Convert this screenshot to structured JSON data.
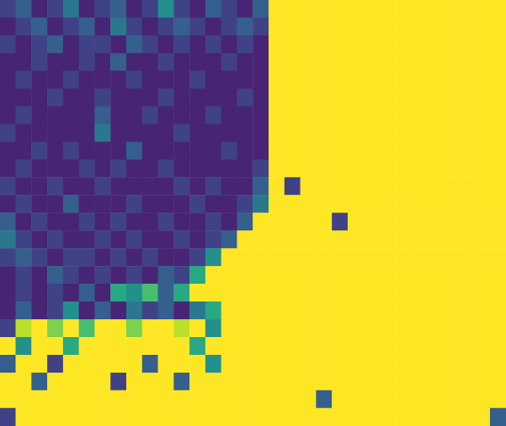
{
  "chart_data": {
    "type": "heatmap",
    "tick_labels": false,
    "zlim": [
      0,
      1
    ],
    "z": [
      [
        0.2,
        0.3,
        0.1,
        0.2,
        0.4,
        0.1,
        0.2,
        0.3,
        0.1,
        0.2,
        0.5,
        0.2,
        0.1,
        0.3,
        0.2,
        0.1,
        0.3,
        1,
        1,
        1,
        1,
        1,
        1,
        1,
        1,
        1,
        1,
        1,
        1,
        1,
        1,
        1
      ],
      [
        0.1,
        0.2,
        0.3,
        0.1,
        0.2,
        0.3,
        0.1,
        0.4,
        0.2,
        0.1,
        0.2,
        0.3,
        0.2,
        0.1,
        0.2,
        0.3,
        0.2,
        1,
        1,
        1,
        1,
        1,
        1,
        1,
        1,
        1,
        1,
        1,
        1,
        1,
        1,
        1
      ],
      [
        0.2,
        0.1,
        0.2,
        0.3,
        0.1,
        0.2,
        0.2,
        0.1,
        0.3,
        0.2,
        0.1,
        0.2,
        0.1,
        0.2,
        0.1,
        0.2,
        0.1,
        1,
        1,
        1,
        1,
        1,
        1,
        1,
        1,
        1,
        1,
        1,
        1,
        1,
        1,
        1
      ],
      [
        0.1,
        0.1,
        0.2,
        0.1,
        0.1,
        0.2,
        0.1,
        0.3,
        0.1,
        0.1,
        0.2,
        0.1,
        0.1,
        0.1,
        0.2,
        0.1,
        0.1,
        1,
        1,
        1,
        1,
        1,
        1,
        1,
        1,
        1,
        1,
        1,
        1,
        1,
        1,
        1
      ],
      [
        0.1,
        0.2,
        0.1,
        0.1,
        0.2,
        0.1,
        0.1,
        0.1,
        0.2,
        0.1,
        0.1,
        0.1,
        0.2,
        0.1,
        0.1,
        0.1,
        0.1,
        1,
        1,
        1,
        1,
        1,
        1,
        1,
        1,
        1,
        1,
        1,
        1,
        1,
        1,
        1
      ],
      [
        0.1,
        0.1,
        0.1,
        0.2,
        0.1,
        0.1,
        0.2,
        0.1,
        0.1,
        0.1,
        0.2,
        0.1,
        0.1,
        0.1,
        0.1,
        0.2,
        0.1,
        1,
        1,
        1,
        1,
        1,
        1,
        1,
        1,
        1,
        1,
        1,
        1,
        1,
        1,
        1
      ],
      [
        0.1,
        0.2,
        0.1,
        0.1,
        0.1,
        0.1,
        0.3,
        0.1,
        0.1,
        0.2,
        0.1,
        0.1,
        0.1,
        0.2,
        0.1,
        0.1,
        0.1,
        1,
        1,
        1,
        1,
        1,
        1,
        1,
        1,
        1,
        1,
        1,
        1,
        1,
        1,
        1
      ],
      [
        0.2,
        0.1,
        0.1,
        0.1,
        0.1,
        0.1,
        0.4,
        0.1,
        0.1,
        0.1,
        0.1,
        0.2,
        0.1,
        0.1,
        0.1,
        0.1,
        0.1,
        1,
        1,
        1,
        1,
        1,
        1,
        1,
        1,
        1,
        1,
        1,
        1,
        1,
        1,
        1
      ],
      [
        0.1,
        0.1,
        0.2,
        0.1,
        0.2,
        0.1,
        0.1,
        0.1,
        0.3,
        0.1,
        0.1,
        0.1,
        0.1,
        0.1,
        0.2,
        0.1,
        0.1,
        1,
        1,
        1,
        1,
        1,
        1,
        1,
        1,
        1,
        1,
        1,
        1,
        1,
        1,
        1
      ],
      [
        0.1,
        0.2,
        0.1,
        0.1,
        0.1,
        0.2,
        0.1,
        0.2,
        0.1,
        0.1,
        0.2,
        0.1,
        0.1,
        0.1,
        0.1,
        0.1,
        0.2,
        1,
        1,
        1,
        1,
        1,
        1,
        1,
        1,
        1,
        1,
        1,
        1,
        1,
        1,
        1
      ],
      [
        0.2,
        0.1,
        0.1,
        0.2,
        0.1,
        0.1,
        0.2,
        0.1,
        0.1,
        0.1,
        0.1,
        0.2,
        0.1,
        0.2,
        0.1,
        0.1,
        0.3,
        1,
        0.2,
        1,
        1,
        1,
        1,
        1,
        1,
        1,
        1,
        1,
        1,
        1,
        1,
        1
      ],
      [
        0.1,
        0.2,
        0.1,
        0.1,
        0.3,
        0.1,
        0.1,
        0.1,
        0.2,
        0.1,
        0.1,
        0.1,
        0.2,
        0.1,
        0.1,
        0.2,
        0.4,
        1,
        1,
        1,
        1,
        1,
        1,
        1,
        1,
        1,
        1,
        1,
        1,
        1,
        1,
        1
      ],
      [
        0.3,
        0.1,
        0.2,
        0.1,
        0.1,
        0.2,
        0.1,
        0.2,
        0.1,
        0.1,
        0.2,
        0.1,
        0.1,
        0.2,
        0.1,
        0.3,
        1,
        1,
        1,
        1,
        1,
        0.2,
        1,
        1,
        1,
        1,
        1,
        1,
        1,
        1,
        1,
        1
      ],
      [
        0.4,
        0.2,
        0.1,
        0.2,
        0.1,
        0.1,
        0.2,
        0.1,
        0.2,
        0.1,
        0.1,
        0.2,
        0.1,
        0.2,
        0.3,
        1,
        1,
        1,
        1,
        1,
        1,
        1,
        1,
        1,
        1,
        1,
        1,
        1,
        1,
        1,
        1,
        1
      ],
      [
        0.2,
        0.3,
        0.2,
        0.1,
        0.2,
        0.2,
        0.1,
        0.2,
        0.1,
        0.2,
        0.1,
        0.1,
        0.2,
        0.5,
        1,
        1,
        1,
        1,
        1,
        1,
        1,
        1,
        1,
        1,
        1,
        1,
        1,
        1,
        1,
        1,
        1,
        1
      ],
      [
        0.1,
        0.2,
        0.1,
        0.3,
        0.2,
        0.1,
        0.2,
        0.1,
        0.2,
        0.1,
        0.3,
        0.2,
        0.6,
        1,
        1,
        1,
        1,
        1,
        1,
        1,
        1,
        1,
        1,
        1,
        1,
        1,
        1,
        1,
        1,
        1,
        1,
        1
      ],
      [
        0.1,
        0.2,
        0.1,
        0.2,
        0.1,
        0.3,
        0.1,
        0.6,
        0.5,
        0.7,
        0.3,
        0.6,
        1,
        1,
        1,
        1,
        1,
        1,
        1,
        1,
        1,
        1,
        1,
        1,
        1,
        1,
        1,
        1,
        1,
        1,
        1,
        1
      ],
      [
        0.1,
        0.3,
        0.1,
        0.2,
        0.5,
        0.1,
        0.3,
        0.1,
        0.4,
        0.2,
        0.3,
        0.1,
        0.4,
        0.6,
        1,
        1,
        1,
        1,
        1,
        1,
        1,
        1,
        1,
        1,
        1,
        1,
        1,
        1,
        1,
        1,
        1,
        1
      ],
      [
        0.2,
        0.9,
        1,
        0.8,
        1,
        0.7,
        1,
        1,
        0.8,
        1,
        1,
        0.9,
        1,
        0.5,
        1,
        1,
        1,
        1,
        1,
        1,
        1,
        1,
        1,
        1,
        1,
        1,
        1,
        1,
        1,
        1,
        1,
        1
      ],
      [
        1,
        0.5,
        1,
        1,
        0.6,
        1,
        1,
        1,
        1,
        1,
        1,
        1,
        0.6,
        1,
        1,
        1,
        1,
        1,
        1,
        1,
        1,
        1,
        1,
        1,
        1,
        1,
        1,
        1,
        1,
        1,
        1,
        1
      ],
      [
        0.3,
        1,
        1,
        0.2,
        1,
        1,
        1,
        1,
        1,
        0.3,
        1,
        1,
        1,
        0.5,
        1,
        1,
        1,
        1,
        1,
        1,
        1,
        1,
        1,
        1,
        1,
        1,
        1,
        1,
        1,
        1,
        1,
        1
      ],
      [
        1,
        1,
        0.3,
        1,
        1,
        1,
        1,
        0.2,
        1,
        1,
        1,
        0.3,
        1,
        1,
        1,
        1,
        1,
        1,
        1,
        1,
        1,
        1,
        1,
        1,
        1,
        1,
        1,
        1,
        1,
        1,
        1,
        1
      ],
      [
        1,
        1,
        1,
        1,
        1,
        1,
        1,
        1,
        1,
        1,
        1,
        1,
        1,
        1,
        1,
        1,
        1,
        1,
        1,
        1,
        0.3,
        1,
        1,
        1,
        1,
        1,
        1,
        1,
        1,
        1,
        1,
        1
      ],
      [
        0.2,
        1,
        1,
        1,
        1,
        1,
        1,
        1,
        1,
        1,
        1,
        1,
        1,
        1,
        1,
        1,
        1,
        1,
        1,
        1,
        1,
        1,
        1,
        1,
        1,
        1,
        1,
        1,
        1,
        1,
        1,
        0.3
      ]
    ]
  }
}
